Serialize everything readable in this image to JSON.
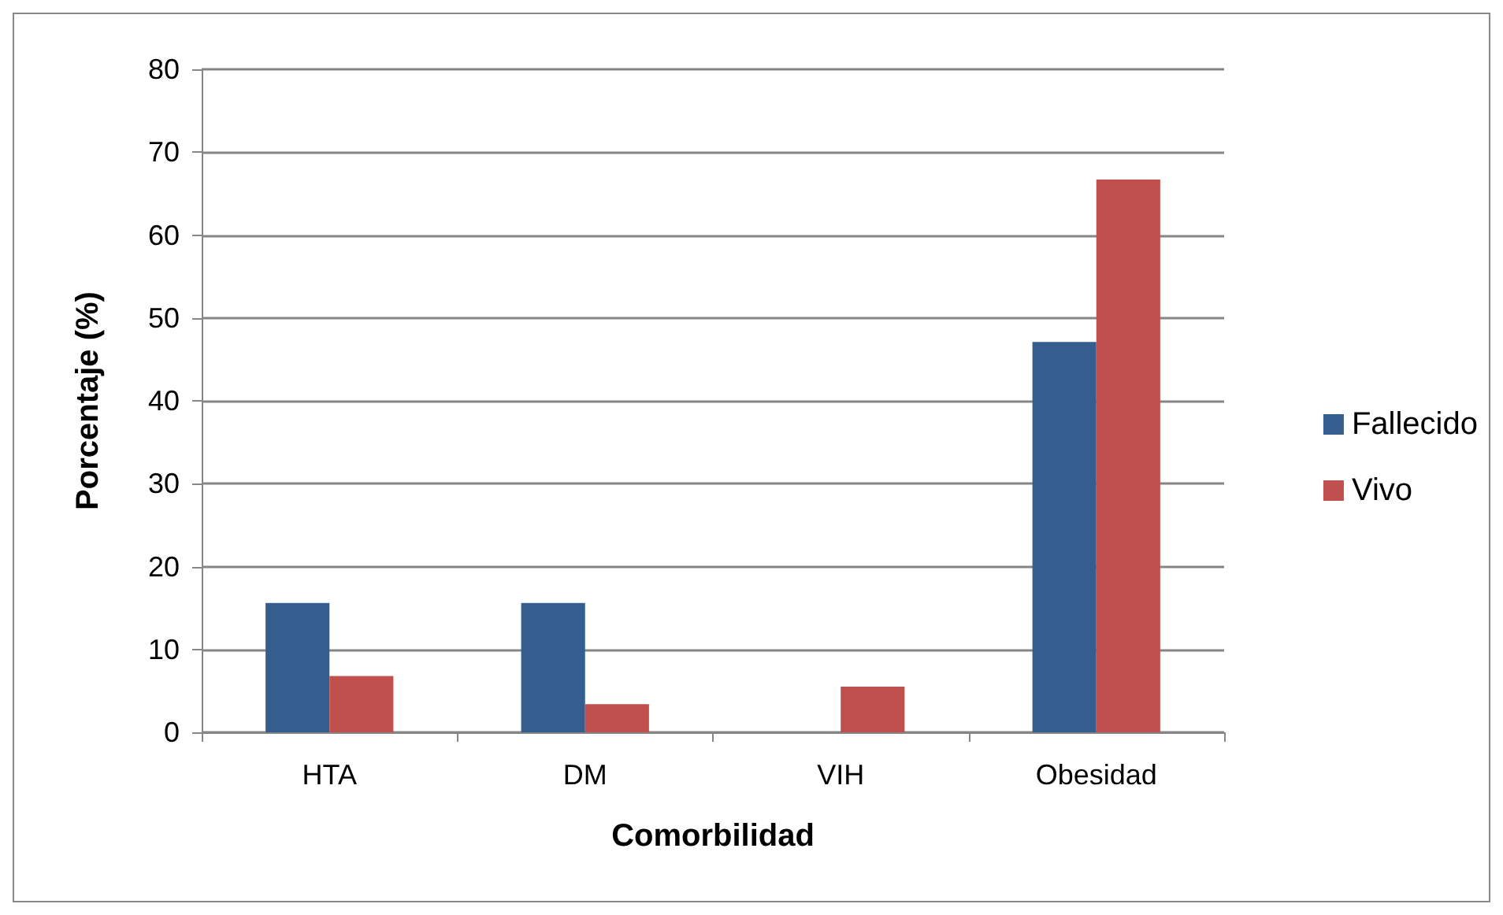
{
  "chart_data": {
    "type": "bar",
    "xlabel": "Comorbilidad",
    "ylabel": "Porcentaje (%)",
    "categories": [
      "HTA",
      "DM",
      "VIH",
      "Obesidad"
    ],
    "series": [
      {
        "name": "Fallecido",
        "color": "#355e8f",
        "values": [
          15.6,
          15.6,
          0,
          47.1
        ]
      },
      {
        "name": "Vivo",
        "color": "#c0504d",
        "values": [
          6.8,
          3.4,
          5.5,
          66.7
        ]
      }
    ],
    "ylim": [
      0,
      80
    ],
    "yticks": [
      0,
      10,
      20,
      30,
      40,
      50,
      60,
      70,
      80
    ],
    "grid": "y",
    "legend": "right"
  }
}
